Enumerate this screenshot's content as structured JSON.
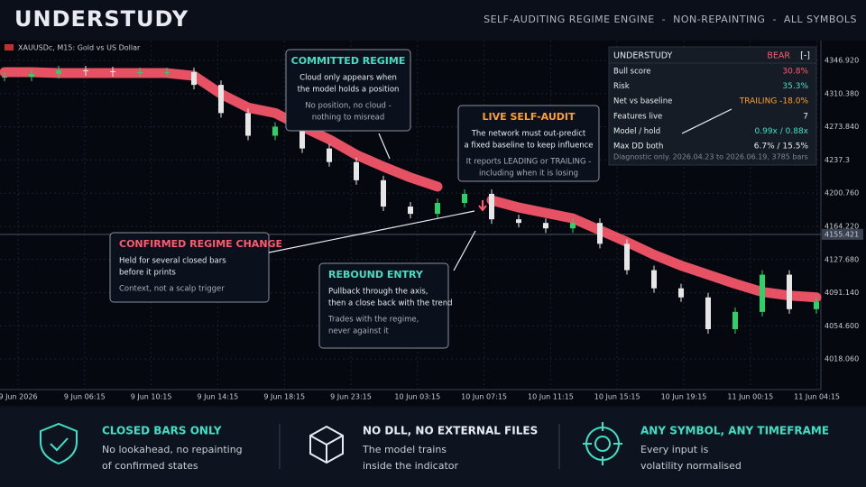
{
  "header": {
    "title": "UNDERSTUDY",
    "tagline": "SELF-AUDITING REGIME ENGINE  -  NON-REPAINTING  -  ALL SYMBOLS"
  },
  "chart_data": {
    "type": "candlestick",
    "symbol": "XAUUSDc, M15: Gold vs US Dollar",
    "x_labels": [
      "9 Jun 2026",
      "9 Jun 06:15",
      "9 Jun 10:15",
      "9 Jun 14:15",
      "9 Jun 18:15",
      "9 Jun 23:15",
      "10 Jun 03:15",
      "10 Jun 07:15",
      "10 Jun 11:15",
      "10 Jun 15:15",
      "10 Jun 19:15",
      "11 Jun 00:15",
      "11 Jun 04:15"
    ],
    "ylim": [
      3976.5,
      4368.8
    ],
    "yticks": [
      {
        "value": 4346.92,
        "label": "4346.920"
      },
      {
        "value": 4310.38,
        "label": "4310.380"
      },
      {
        "value": 4273.84,
        "label": "4273.840"
      },
      4237.3,
      {
        "value": 4200.76,
        "label": "4200.760"
      },
      {
        "value": 4164.22,
        "label": "4164.220"
      },
      {
        "value": 4127.68,
        "label": "4127.680"
      },
      {
        "value": 4091.14,
        "label": "4091.140"
      },
      {
        "value": 4054.6,
        "label": "4054.600"
      },
      {
        "value": 4018.06,
        "label": "4018.060"
      }
    ],
    "current_price": 4155.421,
    "series": [
      {
        "name": "Close",
        "color": "#2fd06a",
        "values": [
          4329,
          4332,
          4336,
          4335,
          4334,
          4334,
          4334,
          4320,
          4289,
          4264,
          4274,
          4250,
          4235,
          4215,
          4186,
          4178,
          4190,
          4200,
          4172,
          4168,
          4162,
          4168,
          4145,
          4116,
          4096,
          4086,
          4051,
          4070,
          4111,
          4073,
          4081
        ]
      },
      {
        "name": "Regime cloud",
        "color": "#ff5a6e",
        "values": [
          4334,
          4334,
          4333,
          4333,
          4333,
          4333,
          4333,
          4330,
          4310,
          4295,
          4289,
          4274,
          4260,
          4243,
          4230,
          4218,
          4208,
          null,
          4193,
          4185,
          4179,
          4173,
          4160,
          4147,
          4133,
          4121,
          4111,
          4101,
          4092,
          4088,
          4086
        ]
      }
    ],
    "grid": true
  },
  "panel": {
    "title": "UNDERSTUDY",
    "state": "BEAR",
    "toggle": "[-]",
    "rows": [
      [
        "Bull score",
        "30.8%"
      ],
      [
        "Risk",
        "35.3%"
      ],
      [
        "Net vs baseline",
        "TRAILING -18.0%"
      ],
      [
        "Features live",
        "7"
      ],
      [
        "Model / hold",
        "0.99x / 0.88x"
      ],
      [
        "Max DD both",
        "6.7% / 15.5%"
      ]
    ],
    "note": "Diagnostic only. 2026.04.23 to 2026.06.19, 3785 bars"
  },
  "callouts": [
    {
      "title": "COMMITTED REGIME",
      "lines": [
        "Cloud only appears when",
        "the model holds a position"
      ],
      "sub": [
        "No position, no cloud -",
        "nothing to misread"
      ]
    },
    {
      "title": "LIVE SELF-AUDIT",
      "lines": [
        "The network must out-predict",
        "a fixed baseline to keep influence"
      ],
      "sub": [
        "It reports LEADING or TRAILING -",
        "including when it is losing"
      ]
    },
    {
      "title": "CONFIRMED REGIME CHANGE",
      "lines": [
        "Held for several closed bars",
        "before it prints"
      ],
      "sub": [
        "Context, not a scalp trigger"
      ]
    },
    {
      "title": "REBOUND ENTRY",
      "lines": [
        "Pullback through the axis,",
        "then a close back with the trend"
      ],
      "sub": [
        "Trades with the regime,",
        "never against it"
      ]
    }
  ],
  "footer": [
    {
      "title": "CLOSED BARS ONLY",
      "lines": [
        "No lookahead, no repainting",
        "of confirmed states"
      ]
    },
    {
      "title": "NO DLL, NO EXTERNAL FILES",
      "lines": [
        "The model trains",
        "inside the indicator"
      ]
    },
    {
      "title": "ANY SYMBOL, ANY TIMEFRAME",
      "lines": [
        "Every input is",
        "volatility normalised"
      ]
    }
  ]
}
